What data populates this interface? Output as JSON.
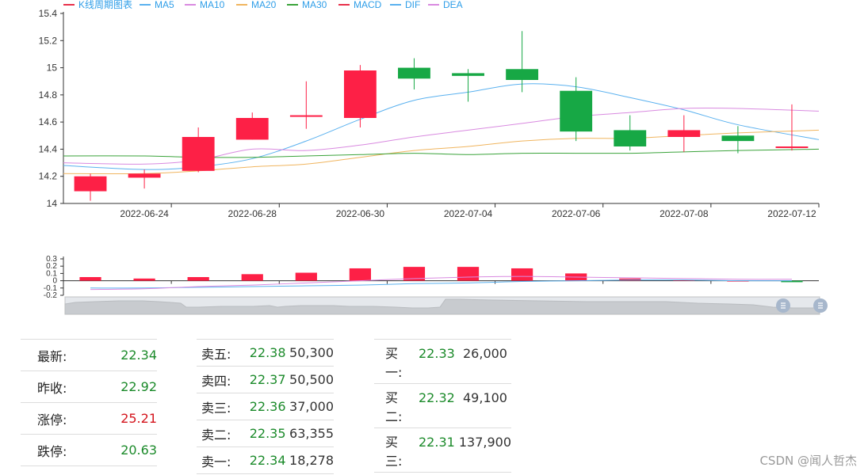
{
  "chart_data": [
    {
      "type": "candlestick",
      "legend": [
        {
          "name": "K线周期图表",
          "color": "#e8304a"
        },
        {
          "name": "MA5",
          "color": "#5ab1ef"
        },
        {
          "name": "MA10",
          "color": "#d98ae0"
        },
        {
          "name": "MA20",
          "color": "#f0b55f"
        },
        {
          "name": "MA30",
          "color": "#3aa33a"
        },
        {
          "name": "MACD",
          "color": "#e8304a"
        },
        {
          "name": "DIF",
          "color": "#5ab1ef"
        },
        {
          "name": "DEA",
          "color": "#d98ae0"
        }
      ],
      "ylim": [
        14,
        15.4
      ],
      "yticks": [
        "14",
        "14.2",
        "14.4",
        "14.6",
        "14.8",
        "15",
        "15.2",
        "15.4"
      ],
      "xtick_labels": [
        "2022-06-24",
        "2022-06-28",
        "2022-06-30",
        "2022-07-04",
        "2022-07-06",
        "2022-07-08",
        "2022-07-12"
      ],
      "candles": [
        {
          "open": 14.09,
          "close": 14.2,
          "low": 14.02,
          "high": 14.22
        },
        {
          "open": 14.19,
          "close": 14.22,
          "low": 14.11,
          "high": 14.25
        },
        {
          "open": 14.24,
          "close": 14.49,
          "low": 14.23,
          "high": 14.56
        },
        {
          "open": 14.47,
          "close": 14.63,
          "low": 14.47,
          "high": 14.67
        },
        {
          "open": 14.64,
          "close": 14.65,
          "low": 14.55,
          "high": 14.9
        },
        {
          "open": 14.63,
          "close": 14.98,
          "low": 14.56,
          "high": 15.02
        },
        {
          "open": 15.0,
          "close": 14.92,
          "low": 14.84,
          "high": 15.07
        },
        {
          "open": 14.96,
          "close": 14.94,
          "low": 14.75,
          "high": 14.99
        },
        {
          "open": 14.99,
          "close": 14.91,
          "low": 14.82,
          "high": 15.27
        },
        {
          "open": 14.83,
          "close": 14.53,
          "low": 14.46,
          "high": 14.93
        },
        {
          "open": 14.54,
          "close": 14.42,
          "low": 14.39,
          "high": 14.65
        },
        {
          "open": 14.49,
          "close": 14.54,
          "low": 14.38,
          "high": 14.65
        },
        {
          "open": 14.5,
          "close": 14.46,
          "low": 14.37,
          "high": 14.57
        },
        {
          "open": 14.41,
          "close": 14.42,
          "low": 14.39,
          "high": 14.73
        }
      ],
      "ma": {
        "MA5": [
          14.28,
          14.25,
          14.27,
          14.33,
          14.46,
          14.62,
          14.76,
          14.82,
          14.88,
          14.86,
          14.78,
          14.69,
          14.58,
          14.47
        ],
        "MA10": [
          14.3,
          14.29,
          14.32,
          14.4,
          14.39,
          14.43,
          14.49,
          14.54,
          14.59,
          14.64,
          14.67,
          14.7,
          14.7,
          14.68
        ],
        "MA20": [
          14.22,
          14.22,
          14.24,
          14.27,
          14.29,
          14.34,
          14.39,
          14.42,
          14.46,
          14.48,
          14.48,
          14.5,
          14.52,
          14.54
        ],
        "MA30": [
          14.35,
          14.35,
          14.34,
          14.34,
          14.35,
          14.36,
          14.37,
          14.36,
          14.37,
          14.37,
          14.37,
          14.38,
          14.39,
          14.4
        ]
      }
    },
    {
      "type": "bar",
      "name": "MACD",
      "ylim": [
        -0.2,
        0.3
      ],
      "yticks": [
        "0.3",
        "0.2",
        "0.1",
        "0",
        "-0.1",
        "-0.2"
      ],
      "macd": [
        0.05,
        0.03,
        0.05,
        0.09,
        0.11,
        0.17,
        0.19,
        0.19,
        0.17,
        0.1,
        0.03,
        0.01,
        0.0,
        -0.02
      ],
      "dif": [
        -0.1,
        -0.1,
        -0.09,
        -0.08,
        -0.07,
        -0.06,
        -0.04,
        -0.03,
        -0.01,
        0.0,
        0.01,
        0.01,
        0.0,
        -0.0
      ],
      "dea": [
        -0.12,
        -0.11,
        -0.08,
        -0.06,
        -0.03,
        0.0,
        0.03,
        0.05,
        0.06,
        0.05,
        0.04,
        0.03,
        0.02,
        0.02
      ]
    }
  ],
  "quote": [
    {
      "label": "最新:",
      "value": "22.34",
      "color": "green"
    },
    {
      "label": "昨收:",
      "value": "22.92",
      "color": "green"
    },
    {
      "label": "涨停:",
      "value": "25.21",
      "color": "red"
    },
    {
      "label": "跌停:",
      "value": "20.63",
      "color": "green"
    }
  ],
  "sell": [
    {
      "label": "卖五:",
      "price": "22.38",
      "volume": "50,300"
    },
    {
      "label": "卖四:",
      "price": "22.37",
      "volume": "50,500"
    },
    {
      "label": "卖三:",
      "price": "22.36",
      "volume": "37,000"
    },
    {
      "label": "卖二:",
      "price": "22.35",
      "volume": "63,355"
    },
    {
      "label": "卖一:",
      "price": "22.34",
      "volume": "18,278"
    }
  ],
  "buy": [
    {
      "label": "买一:",
      "price": "22.33",
      "volume": "26,000"
    },
    {
      "label": "买二:",
      "price": "22.32",
      "volume": "49,100"
    },
    {
      "label": "买三:",
      "price": "22.31",
      "volume": "137,900"
    }
  ],
  "watermark": "CSDN @闻人哲杰"
}
